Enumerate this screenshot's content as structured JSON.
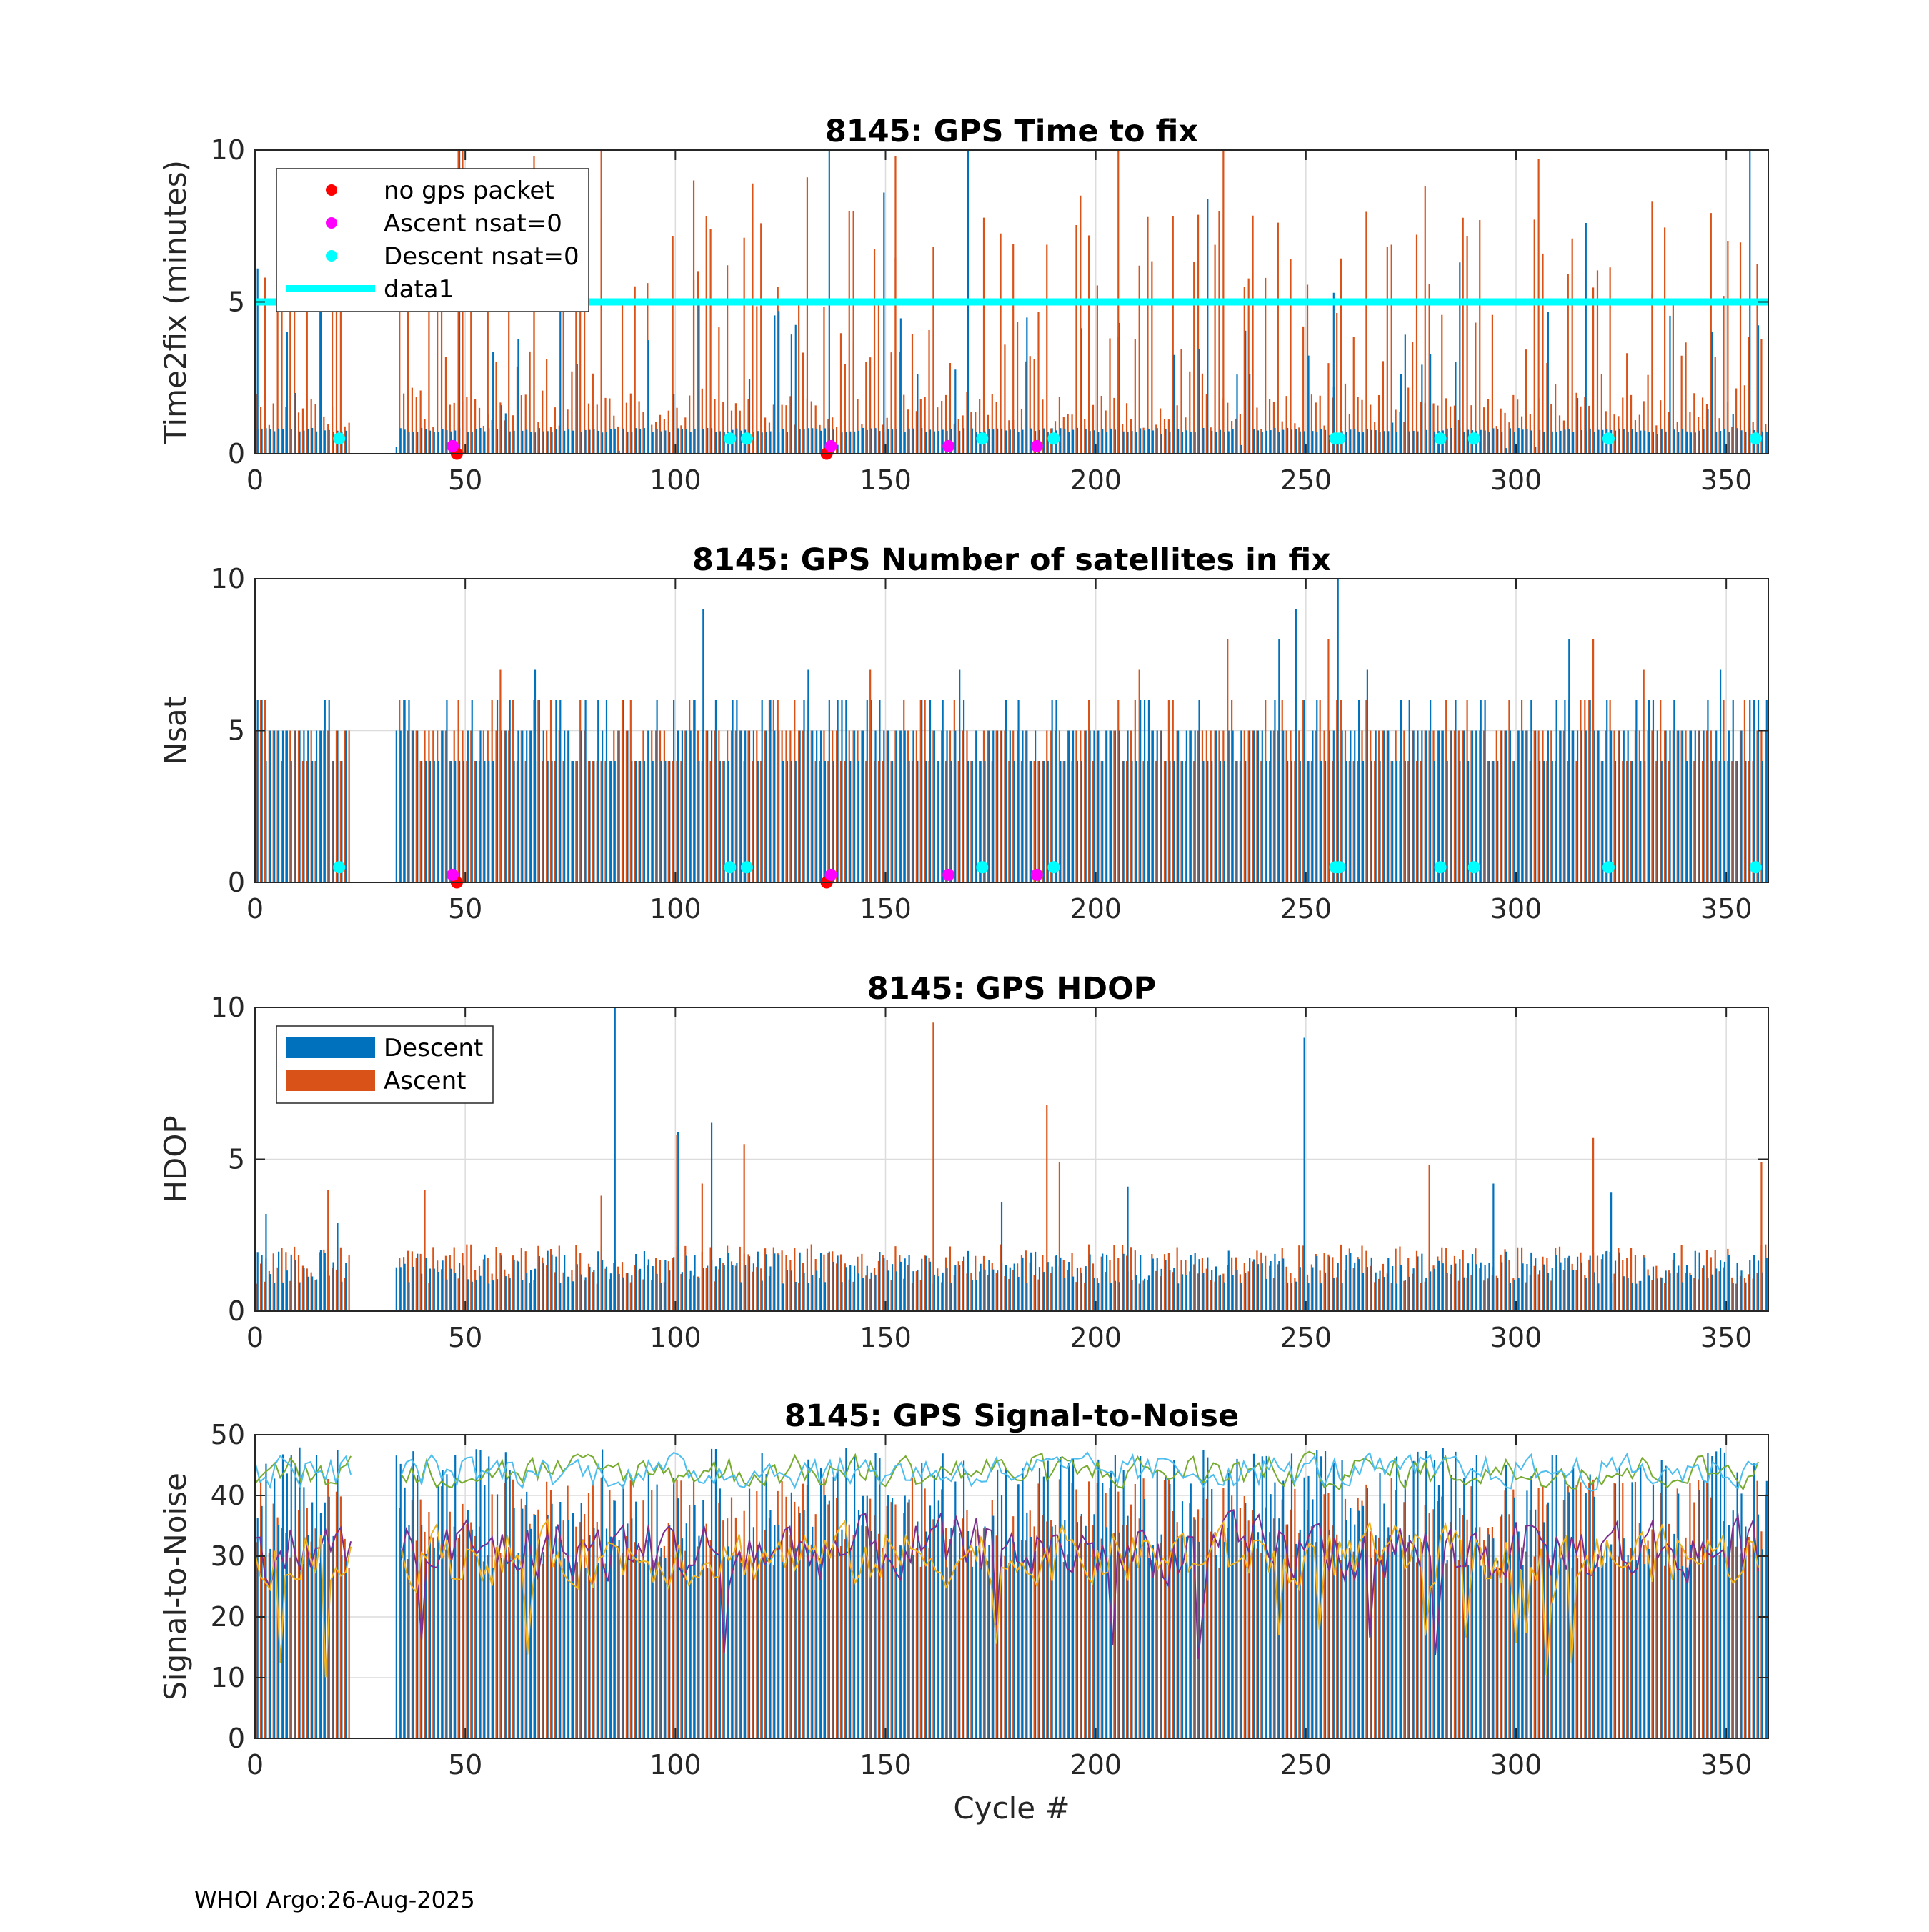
{
  "figure": {
    "footer": "WHOI Argo:26-Aug-2025",
    "xlabel": "Cycle #",
    "colors": {
      "descent": "#0072BD",
      "ascent": "#D95319",
      "no_gps": "#FF0000",
      "ascent_nsat0": "#FF00FF",
      "descent_nsat0": "#00FFFF",
      "snr_line1": "#77AC30",
      "snr_line2": "#4DBEEE",
      "snr_line3": "#7E2F8E",
      "snr_line4": "#EDB120",
      "grid": "#dcdcdc",
      "axis": "#262626"
    }
  },
  "chart_data": [
    {
      "id": "ttf",
      "type": "bar",
      "title": "8145: GPS Time to fix",
      "ylabel": "Time2fix (minutes)",
      "xlim": [
        0,
        360
      ],
      "ylim": [
        0,
        10
      ],
      "xticks": [
        0,
        50,
        100,
        150,
        200,
        250,
        300,
        350
      ],
      "yticks": [
        0,
        5,
        10
      ],
      "reference_line": {
        "name": "data1",
        "y": 5
      },
      "legend": {
        "position": "top-left",
        "entries": [
          {
            "label": "no gps packet",
            "kind": "dot",
            "color": "#FF0000"
          },
          {
            "label": "Ascent nsat=0",
            "kind": "dot",
            "color": "#FF00FF"
          },
          {
            "label": "Descent nsat=0",
            "kind": "dot",
            "color": "#00FFFF"
          },
          {
            "label": "data1",
            "kind": "line",
            "color": "#00FFFF"
          }
        ]
      },
      "markers": {
        "no_gps": [
          [
            48,
            0
          ],
          [
            136,
            0
          ]
        ],
        "ascent_nsat0": [
          [
            47,
            0.25
          ],
          [
            137,
            0.25
          ],
          [
            165,
            0.25
          ],
          [
            186,
            0.25
          ]
        ],
        "descent_nsat0": [
          [
            20,
            0.5
          ],
          [
            113,
            0.5
          ],
          [
            117,
            0.5
          ],
          [
            173,
            0.5
          ],
          [
            190,
            0.5
          ],
          [
            257,
            0.5
          ],
          [
            258,
            0.5
          ],
          [
            282,
            0.5
          ],
          [
            290,
            0.5
          ],
          [
            322,
            0.5
          ],
          [
            357,
            0.5
          ]
        ]
      },
      "highlights_descent": [
        [
          1,
          6.1
        ],
        [
          10,
          2.0
        ],
        [
          16,
          5.2
        ],
        [
          49,
          10.0
        ],
        [
          106,
          5.1
        ],
        [
          125,
          4.7
        ],
        [
          137,
          10.0
        ],
        [
          150,
          8.6
        ],
        [
          170,
          10.0
        ],
        [
          227,
          8.4
        ],
        [
          257,
          5.3
        ],
        [
          287,
          6.3
        ],
        [
          317,
          7.6
        ],
        [
          356,
          10.0
        ]
      ],
      "highlights_ascent": [
        [
          2,
          5.8
        ],
        [
          18,
          5.0
        ],
        [
          48,
          10.2
        ],
        [
          49,
          10.2
        ],
        [
          55,
          9.2
        ],
        [
          66,
          9.8
        ],
        [
          82,
          10.5
        ],
        [
          104,
          9.0
        ],
        [
          118,
          8.9
        ],
        [
          131,
          9.1
        ],
        [
          142,
          8.0
        ],
        [
          152,
          9.8
        ],
        [
          180,
          6.9
        ],
        [
          196,
          8.5
        ],
        [
          205,
          10.3
        ],
        [
          230,
          10.2
        ],
        [
          278,
          8.8
        ],
        [
          305,
          9.7
        ],
        [
          332,
          8.3
        ],
        [
          350,
          7.0
        ]
      ]
    },
    {
      "id": "nsat",
      "type": "bar",
      "title": "8145: GPS Number of satellites in fix",
      "ylabel": "Nsat",
      "xlim": [
        0,
        360
      ],
      "ylim": [
        0,
        10
      ],
      "xticks": [
        0,
        50,
        100,
        150,
        200,
        250,
        300,
        350
      ],
      "yticks": [
        0,
        5,
        10
      ],
      "markers": {
        "no_gps": [
          [
            48,
            0
          ],
          [
            136,
            0
          ]
        ],
        "ascent_nsat0": [
          [
            47,
            0.25
          ],
          [
            137,
            0.25
          ],
          [
            165,
            0.25
          ],
          [
            186,
            0.25
          ]
        ],
        "descent_nsat0": [
          [
            20,
            0.5
          ],
          [
            113,
            0.5
          ],
          [
            117,
            0.5
          ],
          [
            173,
            0.5
          ],
          [
            190,
            0.5
          ],
          [
            257,
            0.5
          ],
          [
            258,
            0.5
          ],
          [
            282,
            0.5
          ],
          [
            290,
            0.5
          ],
          [
            322,
            0.5
          ],
          [
            357,
            0.5
          ]
        ]
      },
      "highlights_descent": [
        [
          2,
          6
        ],
        [
          20,
          5
        ],
        [
          67,
          7
        ],
        [
          107,
          9
        ],
        [
          132,
          7
        ],
        [
          164,
          6
        ],
        [
          168,
          7
        ],
        [
          244,
          8
        ],
        [
          248,
          9
        ],
        [
          258,
          10
        ],
        [
          265,
          7
        ],
        [
          313,
          8
        ],
        [
          349,
          7
        ]
      ],
      "highlights_ascent": [
        [
          2,
          6
        ],
        [
          48,
          6
        ],
        [
          58,
          7
        ],
        [
          87,
          6
        ],
        [
          124,
          6
        ],
        [
          146,
          7
        ],
        [
          210,
          7
        ],
        [
          231,
          8
        ],
        [
          255,
          8
        ],
        [
          318,
          8
        ],
        [
          330,
          7
        ]
      ]
    },
    {
      "id": "hdop",
      "type": "bar",
      "title": "8145: GPS HDOP",
      "ylabel": "HDOP",
      "xlim": [
        0,
        360
      ],
      "ylim": [
        0,
        10
      ],
      "xticks": [
        0,
        50,
        100,
        150,
        200,
        250,
        300,
        350
      ],
      "yticks": [
        0,
        5,
        10
      ],
      "legend": {
        "position": "top-left",
        "entries": [
          {
            "label": "Descent",
            "kind": "patch",
            "color": "#0072BD"
          },
          {
            "label": "Ascent",
            "kind": "patch",
            "color": "#D95319"
          }
        ]
      },
      "highlights_descent": [
        [
          3,
          3.2
        ],
        [
          16,
          2.0
        ],
        [
          20,
          2.9
        ],
        [
          86,
          10.0
        ],
        [
          101,
          5.9
        ],
        [
          109,
          6.2
        ],
        [
          178,
          3.6
        ],
        [
          208,
          4.1
        ],
        [
          250,
          9.0
        ],
        [
          295,
          4.2
        ],
        [
          323,
          3.9
        ]
      ],
      "highlights_ascent": [
        [
          17,
          4.0
        ],
        [
          40,
          4.0
        ],
        [
          82,
          3.8
        ],
        [
          100,
          5.8
        ],
        [
          106,
          4.2
        ],
        [
          116,
          5.5
        ],
        [
          161,
          9.5
        ],
        [
          188,
          6.8
        ],
        [
          191,
          4.9
        ],
        [
          279,
          4.8
        ],
        [
          318,
          5.7
        ],
        [
          358,
          4.9
        ]
      ]
    },
    {
      "id": "snr",
      "type": "line",
      "title": "8145: GPS Signal-to-Noise",
      "ylabel": "Signal-to-Noise",
      "xlabel": "Cycle #",
      "xlim": [
        0,
        360
      ],
      "ylim": [
        0,
        50
      ],
      "xticks": [
        0,
        50,
        100,
        150,
        200,
        250,
        300,
        350
      ],
      "yticks": [
        0,
        10,
        20,
        30,
        40,
        50
      ],
      "series": [
        {
          "name": "snr_line1",
          "color": "#77AC30",
          "mean": 44,
          "spread": 2.5
        },
        {
          "name": "snr_line2",
          "color": "#4DBEEE",
          "mean": 44,
          "spread": 2.5
        },
        {
          "name": "snr_line3",
          "color": "#7E2F8E",
          "mean": 31,
          "spread": 5
        },
        {
          "name": "snr_line4",
          "color": "#EDB120",
          "mean": 30,
          "spread": 4.5
        }
      ]
    }
  ]
}
